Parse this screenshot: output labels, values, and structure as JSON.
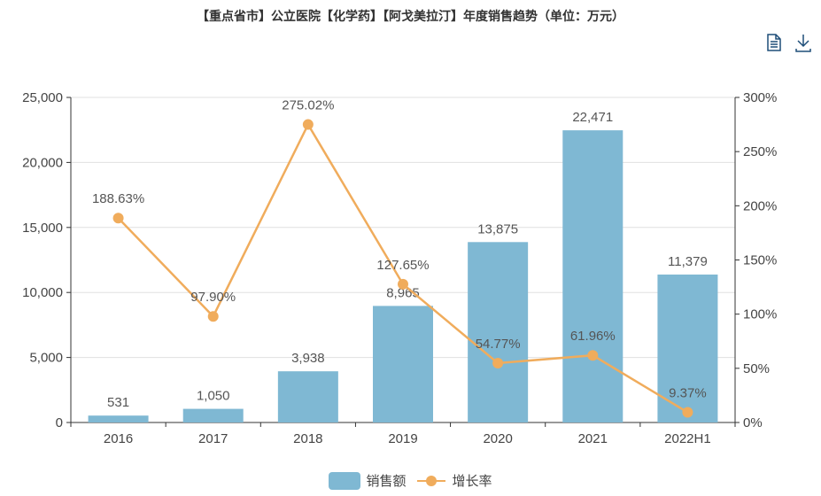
{
  "title": "【重点省市】公立医院【化学药】【阿戈美拉汀】年度销售趋势（单位：万元）",
  "toolbox": {
    "data_view_icon": "document-icon",
    "download_icon": "download-icon"
  },
  "colors": {
    "bar": "#7fb8d3",
    "line": "#f0ac5c",
    "grid": "#e0e0e0",
    "axis": "#333333"
  },
  "chart_data": {
    "type": "bar+line",
    "title": "【重点省市】公立医院【化学药】【阿戈美拉汀】年度销售趋势（单位：万元）",
    "categories": [
      "2016",
      "2017",
      "2018",
      "2019",
      "2020",
      "2021",
      "2022H1"
    ],
    "series": [
      {
        "name": "销售额",
        "type": "bar",
        "axis": "left",
        "values": [
          531,
          1050,
          3938,
          8965,
          13875,
          22471,
          11379
        ],
        "labels": [
          "531",
          "1,050",
          "3,938",
          "8,965",
          "13,875",
          "22,471",
          "11,379"
        ]
      },
      {
        "name": "增长率",
        "type": "line",
        "axis": "right",
        "values": [
          188.63,
          97.9,
          275.02,
          127.65,
          54.77,
          61.96,
          9.37
        ],
        "labels": [
          "188.63%",
          "97.90%",
          "275.02%",
          "127.65%",
          "54.77%",
          "61.96%",
          "9.37%"
        ]
      }
    ],
    "y_left": {
      "range": [
        0,
        25000
      ],
      "ticks": [
        "0",
        "5,000",
        "10,000",
        "15,000",
        "20,000",
        "25,000"
      ]
    },
    "y_right": {
      "range": [
        0,
        300
      ],
      "ticks": [
        "0%",
        "50%",
        "100%",
        "150%",
        "200%",
        "250%",
        "300%"
      ]
    },
    "grid": true,
    "legend_position": "bottom-center",
    "legend": [
      "销售额",
      "增长率"
    ]
  }
}
